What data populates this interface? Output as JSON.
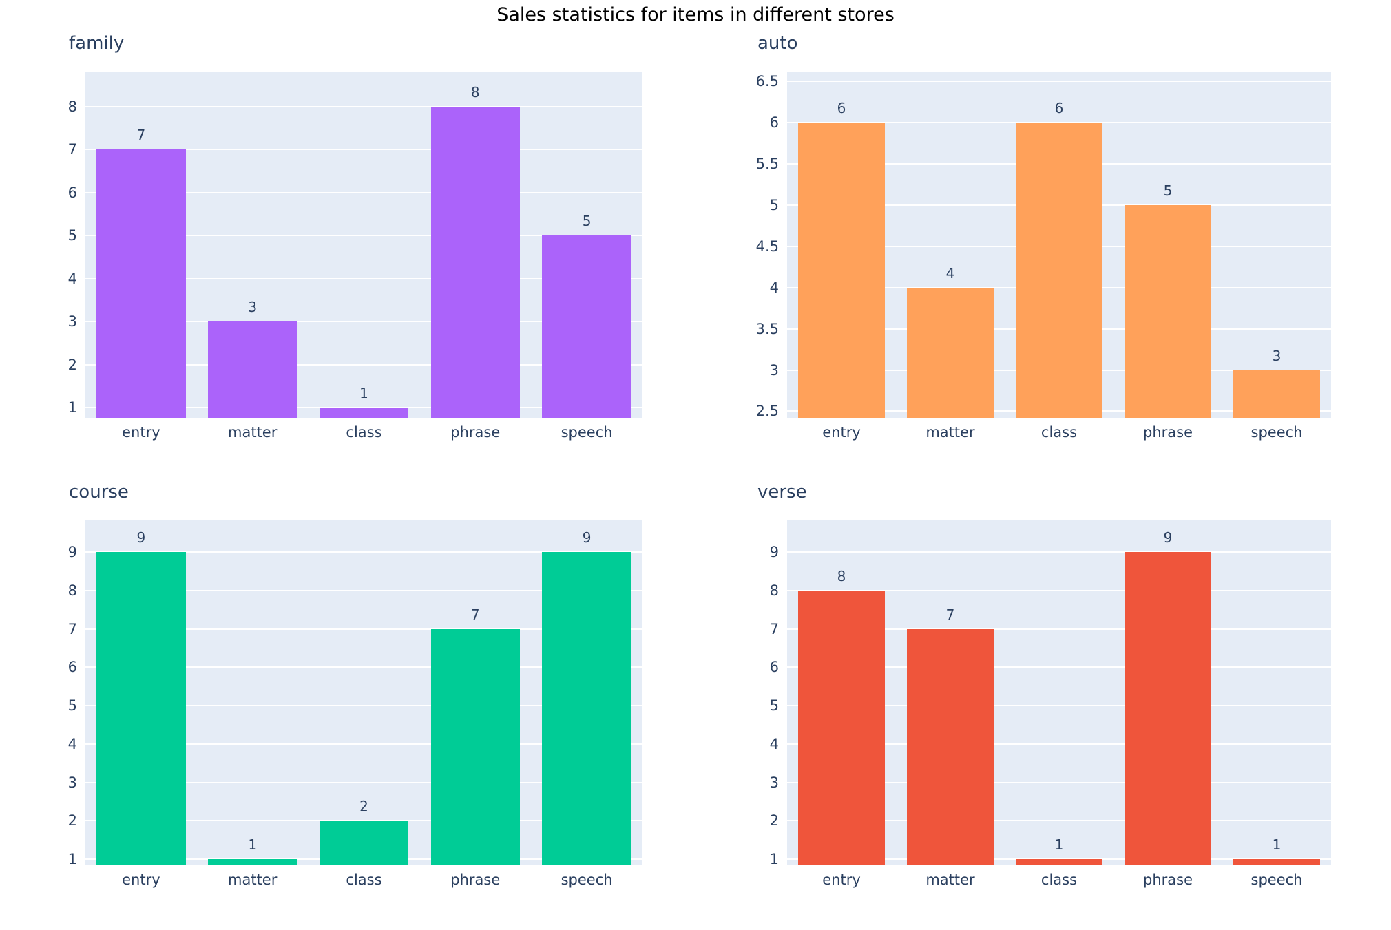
{
  "title": "Sales statistics for items in different stores",
  "categories": [
    "entry",
    "matter",
    "class",
    "phrase",
    "speech"
  ],
  "colors": {
    "plot_background": "#e5ecf6",
    "gridline": "#ffffff",
    "text": "#2a3f5f",
    "main_title": "#000000",
    "family_bars": "#ab63fa",
    "auto_bars": "#ffa15a",
    "course_bars": "#00cc96",
    "verse_bars": "#ef553b"
  },
  "chart_data": [
    {
      "type": "bar",
      "title": "family",
      "categories": [
        "entry",
        "matter",
        "class",
        "phrase",
        "speech"
      ],
      "values": [
        7,
        3,
        1,
        8,
        5
      ],
      "bar_color": "#ab63fa",
      "yticks": [
        1,
        2,
        3,
        4,
        5,
        6,
        7,
        8
      ],
      "ylim": [
        0.76,
        8.8
      ],
      "grid": true,
      "value_labels": "outside",
      "legend": "none"
    },
    {
      "type": "bar",
      "title": "auto",
      "categories": [
        "entry",
        "matter",
        "class",
        "phrase",
        "speech"
      ],
      "values": [
        6,
        4,
        6,
        5,
        3
      ],
      "bar_color": "#ffa15a",
      "yticks": [
        2.5,
        3,
        3.5,
        4,
        4.5,
        5,
        5.5,
        6,
        6.5
      ],
      "ylim": [
        2.42,
        6.61
      ],
      "grid": true,
      "value_labels": "outside",
      "legend": "none"
    },
    {
      "type": "bar",
      "title": "course",
      "categories": [
        "entry",
        "matter",
        "class",
        "phrase",
        "speech"
      ],
      "values": [
        9,
        1,
        2,
        7,
        9
      ],
      "bar_color": "#00cc96",
      "yticks": [
        1,
        2,
        3,
        4,
        5,
        6,
        7,
        8,
        9
      ],
      "ylim": [
        0.84,
        9.83
      ],
      "grid": true,
      "value_labels": "outside",
      "legend": "none"
    },
    {
      "type": "bar",
      "title": "verse",
      "categories": [
        "entry",
        "matter",
        "class",
        "phrase",
        "speech"
      ],
      "values": [
        8,
        7,
        1,
        9,
        1
      ],
      "bar_color": "#ef553b",
      "yticks": [
        1,
        2,
        3,
        4,
        5,
        6,
        7,
        8,
        9
      ],
      "ylim": [
        0.84,
        9.83
      ],
      "grid": true,
      "value_labels": "outside",
      "legend": "none"
    }
  ]
}
